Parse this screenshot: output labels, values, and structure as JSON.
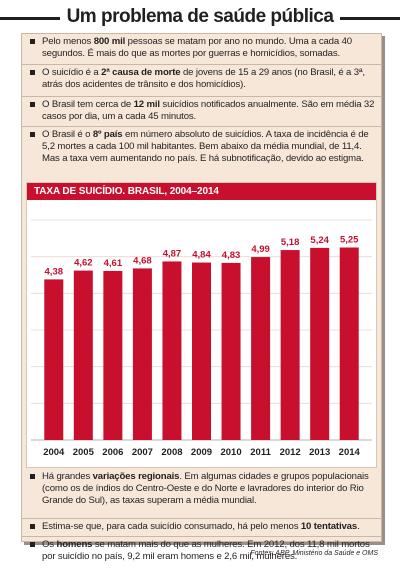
{
  "title": "Um problema de saúde pública",
  "bullets_top": [
    {
      "segments": [
        {
          "t": "Pelo menos ",
          "b": false
        },
        {
          "t": "800 mil",
          "b": true
        },
        {
          "t": " pessoas se matam por ano no mundo. Uma a cada 40 segundos. É mais do que as mortes por guerras e homicídios, somadas.",
          "b": false
        }
      ]
    },
    {
      "segments": [
        {
          "t": "O suicídio é a ",
          "b": false
        },
        {
          "t": "2ª causa de morte",
          "b": true
        },
        {
          "t": " de jovens de 15 a 29 anos (no Brasil, é a 3ª, atrás dos acidentes de trânsito e dos homicídios).",
          "b": false
        }
      ]
    },
    {
      "segments": [
        {
          "t": "O Brasil tem cerca de ",
          "b": false
        },
        {
          "t": "12 mil",
          "b": true
        },
        {
          "t": " suicídios notificados anualmente. São em média 32 casos por dia, um a cada 45 minutos.",
          "b": false
        }
      ]
    },
    {
      "segments": [
        {
          "t": "O Brasil é o ",
          "b": false
        },
        {
          "t": "8º país",
          "b": true
        },
        {
          "t": " em número absoluto de suicídios. A taxa de incidência é de 5,2 mortes a cada 100 mil habitantes. Bem abaixo da média mundial, de 11,4. Mas a taxa vem aumentando no país. E há subnotificação, devido ao estigma.",
          "b": false
        }
      ]
    }
  ],
  "bullets_bottom": [
    {
      "segments": [
        {
          "t": "Há grandes ",
          "b": false
        },
        {
          "t": "variações regionais",
          "b": true
        },
        {
          "t": ". Em algumas cidades e grupos populacionais (como os de índios do Centro-Oeste e do Norte e lavradores do interior do Rio Grande do Sul), as taxas superam a média mundial.",
          "b": false
        }
      ]
    },
    {
      "segments": [
        {
          "t": "Estima-se que, para cada suicídio consumado, há pelo menos ",
          "b": false
        },
        {
          "t": "10 tentativas",
          "b": true
        },
        {
          "t": ".",
          "b": false
        }
      ]
    },
    {
      "segments": [
        {
          "t": "Os ",
          "b": false
        },
        {
          "t": "homens",
          "b": true
        },
        {
          "t": " se matam mais do que as mulheres. Em 2012, dos 11,8 mil mortos por suicídio no país, 9,2 mil eram homens e 2,6 mil, mulheres.",
          "b": false
        }
      ]
    }
  ],
  "chart_data": {
    "type": "bar",
    "title": "TAXA DE SUICÍDIO. BRASIL, 2004–2014",
    "categories": [
      "2004",
      "2005",
      "2006",
      "2007",
      "2008",
      "2009",
      "2010",
      "2011",
      "2012",
      "2013",
      "2014"
    ],
    "values": [
      4.38,
      4.62,
      4.61,
      4.68,
      4.87,
      4.84,
      4.83,
      4.99,
      5.18,
      5.24,
      5.25
    ],
    "value_labels": [
      "4,38",
      "4,62",
      "4,61",
      "4,68",
      "4,87",
      "4,84",
      "4,83",
      "4,99",
      "5,18",
      "5,24",
      "5,25"
    ],
    "xlabel": "",
    "ylabel": "",
    "ylim": [
      0,
      6
    ],
    "grid": true,
    "bar_color": "#c8102e",
    "label_color": "#c8102e",
    "background_color": "#ffffff"
  },
  "source": "Fontes: ABP, Ministério da Saúde e OMS",
  "colors": {
    "accent": "#c8102e",
    "panel": "#f6e7d9",
    "text": "#231f20"
  }
}
